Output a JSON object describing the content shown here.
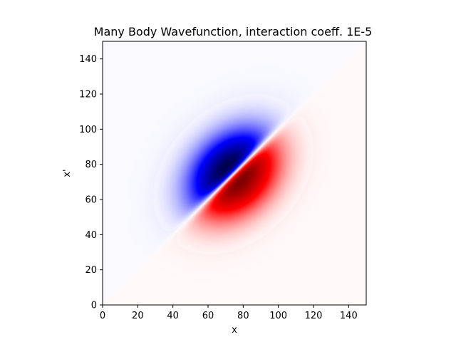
{
  "chart_data": {
    "type": "heatmap",
    "title": "Many Body Wavefunction, interaction coeff. 1E-5",
    "xlabel": "x",
    "ylabel": "x'",
    "xlim": [
      0,
      150
    ],
    "ylim": [
      0,
      150
    ],
    "x_ticks": [
      0,
      20,
      40,
      60,
      80,
      100,
      120,
      140
    ],
    "y_ticks": [
      0,
      20,
      40,
      60,
      80,
      100,
      120,
      140
    ],
    "grid": false,
    "colormap": "seismic",
    "colormap_colors": {
      "low": "#00004d",
      "mid_low": "#0000ff",
      "center": "#ffffff",
      "mid_high": "#ff0000",
      "high": "#800000"
    },
    "features": [
      {
        "name": "negative lobe",
        "x": 67,
        "y": 82,
        "value": -1.0
      },
      {
        "name": "positive lobe",
        "x": 82,
        "y": 67,
        "value": 1.0
      }
    ],
    "node_line": "x = x'"
  }
}
